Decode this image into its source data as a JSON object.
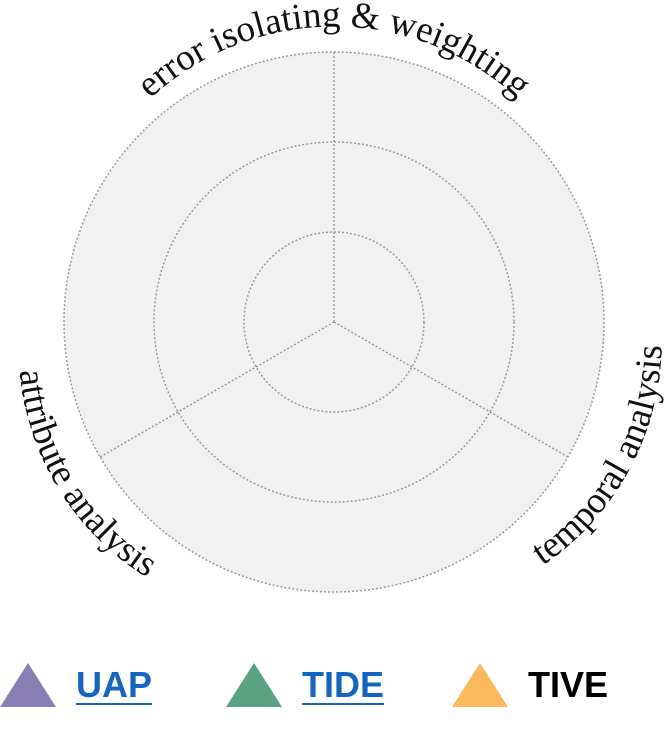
{
  "chart_data": {
    "type": "radar",
    "axes": [
      "error isolating & weighting",
      "temporal analysis",
      "attribute analysis"
    ],
    "rings": 3,
    "grid": true,
    "background": "#f1f1f1",
    "series": [
      {
        "name": "UAP",
        "color": "#8a7fb5",
        "values": [
          0,
          0,
          0
        ]
      },
      {
        "name": "TIDE",
        "color": "#5ba283",
        "values": [
          0,
          0,
          0
        ]
      },
      {
        "name": "TIVE",
        "color": "#fbb85c",
        "values": [
          0,
          0,
          0
        ]
      }
    ]
  },
  "legend": {
    "items": [
      {
        "label": "UAP",
        "color": "#8a7fb5",
        "link": true
      },
      {
        "label": "TIDE",
        "color": "#5ba283",
        "link": true
      },
      {
        "label": "TIVE",
        "color": "#fbb85c",
        "link": false
      }
    ]
  }
}
